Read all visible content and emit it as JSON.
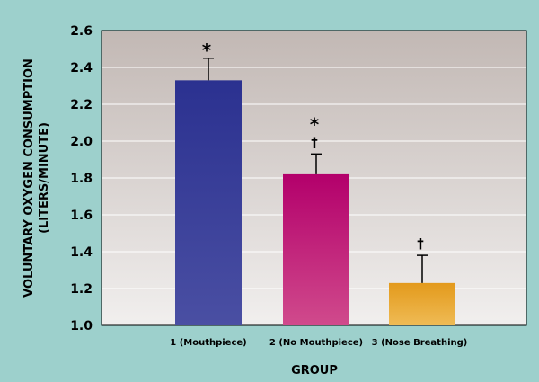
{
  "chart_data": {
    "type": "bar",
    "title": "",
    "categories": [
      "1 (Mouthpiece)",
      "2 (No Mouthpiece)",
      "3 (Nose Breathing)"
    ],
    "values": [
      2.33,
      1.82,
      1.23
    ],
    "error_upper": [
      2.45,
      1.93,
      1.38
    ],
    "annotations": [
      [
        "*"
      ],
      [
        "*",
        "†"
      ],
      [
        "†"
      ]
    ],
    "xlabel": "GROUP",
    "ylabel": "VOLUNTARY OXYGEN CONSUMPTION",
    "ylabel_units": "(LITERS/MINUTE)",
    "ylim": [
      1.0,
      2.6
    ],
    "yticks": [
      "1.0",
      "1.2",
      "1.4",
      "1.6",
      "1.8",
      "2.0",
      "2.2",
      "2.4",
      "2.6"
    ],
    "grid": true,
    "colors": {
      "bar1_top": "#2b3190",
      "bar1_bottom": "#4a4fa3",
      "bar2_top": "#b3006b",
      "bar2_bottom": "#d04a8c",
      "bar3_top": "#e39a1c",
      "bar3_bottom": "#efbb55",
      "plot_bg_top": "#c2b8b4",
      "plot_bg_bottom": "#f1efee",
      "page_bg": "#9dd0cc"
    }
  }
}
